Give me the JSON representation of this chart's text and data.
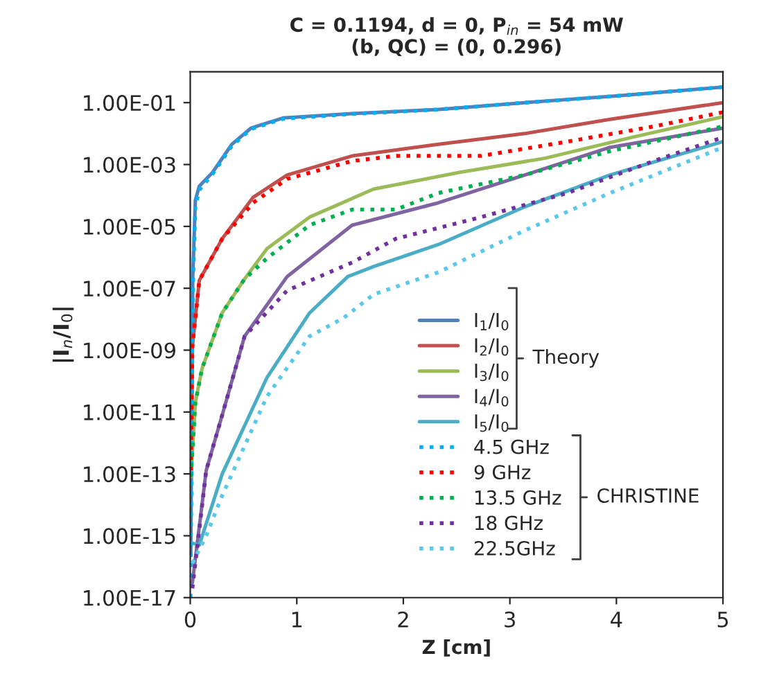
{
  "chart_data": {
    "type": "line",
    "title": "C = 0.1194, d = 0, P$_{in}$ = 54 mW",
    "subtitle": "(b, QC) = (0, 0.296)",
    "xlabel": "Z [cm]",
    "ylabel": "|I$_{n}$/I$_{0}$|",
    "log": "y",
    "xlim": [
      0,
      5
    ],
    "ylim": [
      1e-17,
      1
    ],
    "xticks": [
      0,
      1,
      2,
      3,
      4,
      5
    ],
    "yticks": [
      {
        "value": 1e-17,
        "label": "1.00E-17"
      },
      {
        "value": 1e-15,
        "label": "1.00E-15"
      },
      {
        "value": 1e-13,
        "label": "1.00E-13"
      },
      {
        "value": 1e-11,
        "label": "1.00E-11"
      },
      {
        "value": 1e-09,
        "label": "1.00E-09"
      },
      {
        "value": 1e-07,
        "label": "1.00E-07"
      },
      {
        "value": 1e-05,
        "label": "1.00E-05"
      },
      {
        "value": 0.001,
        "label": "1.00E-03"
      },
      {
        "value": 0.1,
        "label": "1.00E-01"
      }
    ],
    "grid": false,
    "legend": "lower right",
    "annotations": [
      "Theory",
      "CHRISTINE"
    ],
    "series": [
      {
        "name": "I$_{1}$/I$_{0}$",
        "color": "#4f81bd",
        "line_style": "solid",
        "x": [
          0.005,
          0.024,
          0.048,
          0.085,
          0.21,
          0.39,
          0.57,
          0.87,
          1.52,
          2.33,
          3.14,
          4.02,
          5.0
        ],
        "values": [
          2.5e-16,
          2.5e-07,
          7e-05,
          0.0002,
          0.00056,
          0.0045,
          0.015,
          0.032,
          0.044,
          0.06,
          0.1,
          0.166,
          0.32
        ]
      },
      {
        "name": "I$_{2}$/I$_{0}$",
        "color": "#c0504d",
        "line_style": "solid",
        "x": [
          0.006,
          0.02,
          0.085,
          0.3,
          0.59,
          0.91,
          1.52,
          2.33,
          3.14,
          3.94,
          5.0
        ],
        "values": [
          1.3e-13,
          1.3e-09,
          1.8e-07,
          4e-06,
          8.7e-05,
          0.00046,
          0.0019,
          0.0045,
          0.01,
          0.029,
          0.1
        ]
      },
      {
        "name": "I$_{3}$/I$_{0}$",
        "color": "#9bbb59",
        "line_style": "solid",
        "x": [
          0.006,
          0.048,
          0.11,
          0.3,
          0.51,
          0.72,
          1.12,
          1.72,
          2.53,
          3.33,
          4.15,
          5.0
        ],
        "values": [
          8e-14,
          2e-11,
          2.5e-10,
          1.6e-08,
          2e-07,
          1.9e-06,
          2e-05,
          0.00016,
          0.00056,
          0.0016,
          0.0076,
          0.035
        ]
      },
      {
        "name": "I$_{4}$/I$_{0}$",
        "color": "#8064a2",
        "line_style": "solid",
        "x": [
          0.02,
          0.15,
          0.3,
          0.51,
          0.91,
          1.52,
          2.33,
          3.14,
          3.94,
          5.0
        ],
        "values": [
          3e-17,
          1.3e-13,
          8e-12,
          2.8e-09,
          2.4e-07,
          1.1e-05,
          5.8e-05,
          0.00046,
          0.0036,
          0.015
        ]
      },
      {
        "name": "I$_{5}$/I$_{0}$",
        "color": "#4bacc6",
        "line_style": "solid",
        "x": [
          0.005,
          0.085,
          0.3,
          0.72,
          1.12,
          1.48,
          1.72,
          2.33,
          3.14,
          3.94,
          5.0
        ],
        "values": [
          6e-16,
          5e-16,
          1e-13,
          1.3e-10,
          1.6e-08,
          2.4e-07,
          5e-07,
          2.6e-06,
          4.3e-05,
          0.00046,
          0.0055
        ]
      },
      {
        "name": "4.5 GHz",
        "color": "#00b0f0",
        "line_style": "dotted",
        "x": [
          0.002,
          0.024,
          0.048,
          0.085,
          0.21,
          0.39,
          0.57,
          0.87,
          1.52,
          2.33,
          3.14,
          4.02,
          5.0
        ],
        "values": [
          1e-17,
          1e-07,
          4.3e-05,
          0.00015,
          0.0005,
          0.004,
          0.014,
          0.03,
          0.043,
          0.06,
          0.1,
          0.166,
          0.32
        ]
      },
      {
        "name": "9 GHz",
        "color": "#ff0000",
        "line_style": "dotted",
        "x": [
          0.006,
          0.02,
          0.085,
          0.3,
          0.59,
          0.91,
          1.52,
          1.93,
          2.73,
          3.54,
          4.35,
          5.0
        ],
        "values": [
          1.3e-13,
          1.3e-09,
          1.8e-07,
          4e-06,
          5.8e-05,
          0.00034,
          0.0013,
          0.0019,
          0.0019,
          0.0055,
          0.017,
          0.049
        ]
      },
      {
        "name": "13.5 GHz",
        "color": "#00b050",
        "line_style": "dotted",
        "x": [
          0.006,
          0.048,
          0.11,
          0.3,
          0.51,
          0.72,
          1.12,
          1.52,
          1.93,
          2.33,
          3.14,
          3.94,
          5.0
        ],
        "values": [
          8e-14,
          2e-11,
          2.5e-10,
          1.6e-08,
          2e-07,
          9.3e-07,
          1.1e-05,
          3.5e-05,
          3.5e-05,
          0.00012,
          0.00046,
          0.0027,
          0.017
        ]
      },
      {
        "name": "18 GHz",
        "color": "#7030a0",
        "line_style": "dotted",
        "x": [
          0.02,
          0.15,
          0.3,
          0.51,
          0.91,
          1.52,
          1.93,
          2.73,
          3.54,
          4.35,
          5.0
        ],
        "values": [
          2e-17,
          1.3e-13,
          8e-12,
          2.8e-09,
          8.5e-08,
          6.8e-07,
          4e-06,
          2e-05,
          0.00012,
          0.0013,
          0.0076
        ]
      },
      {
        "name": "22.5GHz",
        "color": "#5bc8ea",
        "line_style": "dotted",
        "x": [
          0.02,
          0.15,
          0.3,
          0.72,
          1.12,
          1.44,
          1.72,
          2.33,
          3.14,
          3.94,
          5.0
        ],
        "values": [
          1.3e-16,
          1e-15,
          2e-14,
          3.2e-11,
          2.8e-09,
          1.1e-08,
          6.3e-08,
          3.3e-07,
          7.4e-06,
          0.00012,
          0.0036
        ]
      }
    ]
  }
}
